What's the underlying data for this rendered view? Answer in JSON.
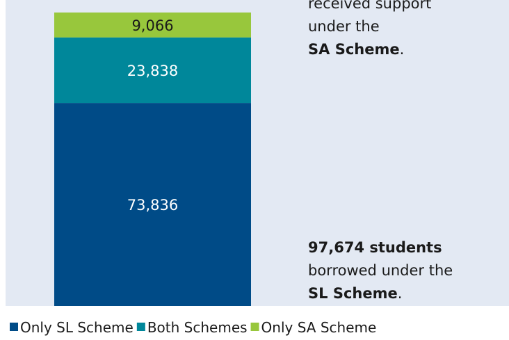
{
  "chart_data": {
    "type": "stacked-bar",
    "series": [
      {
        "name": "Only SL Scheme",
        "color": "#004b87",
        "values": [
          73836
        ],
        "value_labels": [
          "73,836"
        ]
      },
      {
        "name": "Both Schemes",
        "color": "#00879a",
        "values": [
          23838
        ],
        "value_labels": [
          "23,838"
        ]
      },
      {
        "name": "Only SA Scheme",
        "color": "#98c73c",
        "values": [
          9066
        ],
        "value_labels": [
          "9,066"
        ]
      }
    ],
    "annotations": [
      {
        "lines": [
          [
            {
              "text": "received support"
            }
          ],
          [
            {
              "text": "under the"
            }
          ],
          [
            {
              "text": "SA Scheme",
              "bold": true
            },
            {
              "text": "."
            }
          ]
        ]
      },
      {
        "lines": [
          [
            {
              "text": "97,674 students",
              "bold": true
            }
          ],
          [
            {
              "text": "borrowed under the"
            }
          ],
          [
            {
              "text": "SL Scheme",
              "bold": true
            },
            {
              "text": "."
            }
          ]
        ]
      }
    ]
  }
}
